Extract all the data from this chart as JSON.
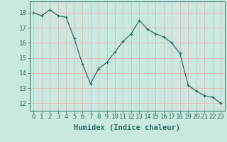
{
  "x": [
    0,
    1,
    2,
    3,
    4,
    5,
    6,
    7,
    8,
    9,
    10,
    11,
    12,
    13,
    14,
    15,
    16,
    17,
    18,
    19,
    20,
    21,
    22,
    23
  ],
  "y": [
    18,
    17.8,
    18.2,
    17.8,
    17.7,
    16.3,
    14.6,
    13.3,
    14.3,
    14.7,
    15.4,
    16.1,
    16.6,
    17.5,
    16.9,
    16.6,
    16.4,
    16.0,
    15.3,
    13.2,
    12.8,
    12.5,
    12.4,
    12.0
  ],
  "xlabel": "Humidex (Indice chaleur)",
  "ylabel": "",
  "ylim": [
    11.5,
    18.75
  ],
  "xlim": [
    -0.5,
    23.5
  ],
  "yticks": [
    12,
    13,
    14,
    15,
    16,
    17,
    18
  ],
  "xticks": [
    0,
    1,
    2,
    3,
    4,
    5,
    6,
    7,
    8,
    9,
    10,
    11,
    12,
    13,
    14,
    15,
    16,
    17,
    18,
    19,
    20,
    21,
    22,
    23
  ],
  "line_color": "#2d6e62",
  "marker": "+",
  "bg_color": "#c8e8e0",
  "grid_color": "#e8b8b8",
  "axis_color": "#2d6e62",
  "label_fontsize": 7.5,
  "tick_fontsize": 6.5
}
